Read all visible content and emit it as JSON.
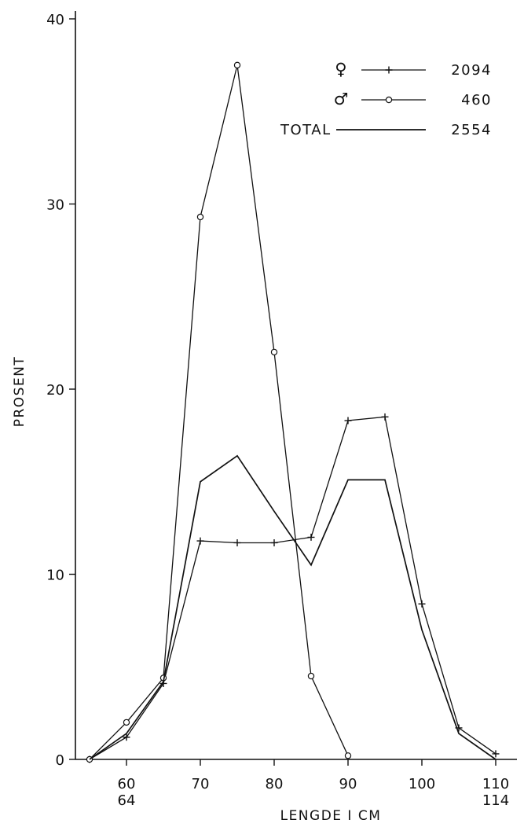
{
  "chart_data": {
    "type": "line",
    "xlabel": "LENGDE I CM",
    "ylabel": "PROSENT",
    "xlim": [
      55,
      110
    ],
    "ylim": [
      0,
      40
    ],
    "grid": false,
    "legend_position": "top-right",
    "yticks": [
      {
        "value": 0,
        "label": "0"
      },
      {
        "value": 10,
        "label": "10"
      },
      {
        "value": 20,
        "label": "20"
      },
      {
        "value": 30,
        "label": "30"
      },
      {
        "value": 40,
        "label": "40"
      }
    ],
    "xticks": [
      {
        "value": 60,
        "label": "60",
        "label2": "64"
      },
      {
        "value": 70,
        "label": "70",
        "label2": ""
      },
      {
        "value": 80,
        "label": "80",
        "label2": ""
      },
      {
        "value": 90,
        "label": "90",
        "label2": ""
      },
      {
        "value": 100,
        "label": "100",
        "label2": ""
      },
      {
        "value": 110,
        "label": "110",
        "label2": "114"
      }
    ],
    "x": [
      55,
      60,
      65,
      70,
      75,
      80,
      85,
      90,
      95,
      100,
      105,
      110
    ],
    "series": [
      {
        "name": "♀",
        "key": "female",
        "marker": "plus",
        "legend_value": "2094",
        "points": [
          [
            55,
            0
          ],
          [
            60,
            1.2
          ],
          [
            65,
            4.1
          ],
          [
            70,
            11.8
          ],
          [
            75,
            11.7
          ],
          [
            80,
            11.7
          ],
          [
            85,
            12.0
          ],
          [
            90,
            18.3
          ],
          [
            95,
            18.5
          ],
          [
            100,
            8.4
          ],
          [
            105,
            1.7
          ],
          [
            110,
            0.3
          ]
        ]
      },
      {
        "name": "♂",
        "key": "male",
        "marker": "circle",
        "legend_value": "460",
        "points": [
          [
            55,
            0
          ],
          [
            60,
            2.0
          ],
          [
            65,
            4.4
          ],
          [
            70,
            29.3
          ],
          [
            75,
            37.5
          ],
          [
            80,
            22.0
          ],
          [
            85,
            4.5
          ],
          [
            90,
            0.2
          ]
        ]
      },
      {
        "name": "TOTAL",
        "key": "total",
        "marker": "none",
        "legend_value": "2554",
        "points": [
          [
            55,
            0
          ],
          [
            60,
            1.4
          ],
          [
            65,
            4.2
          ],
          [
            70,
            15.0
          ],
          [
            75,
            16.4
          ],
          [
            80,
            13.4
          ],
          [
            85,
            10.5
          ],
          [
            90,
            15.1
          ],
          [
            95,
            15.1
          ],
          [
            100,
            7.0
          ],
          [
            105,
            1.4
          ],
          [
            110,
            0
          ]
        ]
      }
    ]
  }
}
